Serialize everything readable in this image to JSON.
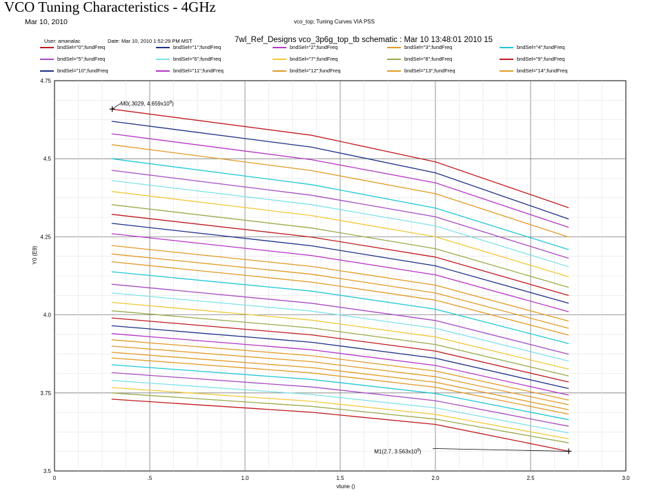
{
  "header": {
    "title": "VCO Tuning Characteristics - 4GHz",
    "date": "Mar 10, 2010",
    "subtitle": "vco_top; Tuning Curves VIA PSS",
    "user": "User: amanalac",
    "datetime": "Date: Mar 10, 2010   1:52:29 PM MST",
    "design": "7wl_Ref_Designs vco_3p6g_top_tb schematic : Mar 10 13:48:01 2010 15"
  },
  "chart_data": {
    "type": "line",
    "xlabel": "vtune ()",
    "ylabel": "Y0 (E9)",
    "xlim": [
      0,
      3.0
    ],
    "ylim": [
      3.5,
      4.75
    ],
    "xticks": [
      "0",
      ".5",
      "1.0",
      "1.5",
      "2.0",
      "2.5",
      "3.0"
    ],
    "yticks": [
      "3.5",
      "3.75",
      "4.0",
      "4.25",
      "4.5",
      "4.75"
    ],
    "x": [
      0.3,
      1.35,
      2.0,
      2.7
    ],
    "grid": true,
    "legend_position": "top",
    "series": [
      {
        "name": "bndSel=\"0\";fundFreq",
        "color": "#c0191f",
        "values": [
          4.659,
          4.575,
          4.49,
          4.343
        ]
      },
      {
        "name": "bndSel=\"1\";fundFreq",
        "color": "#1c2f86",
        "values": [
          4.62,
          4.537,
          4.455,
          4.307
        ]
      },
      {
        "name": "bndSel=\"2\";fundFreq",
        "color": "#b534c4",
        "values": [
          4.58,
          4.497,
          4.423,
          4.28
        ]
      },
      {
        "name": "bndSel=\"3\";fundFreq",
        "color": "#e09a26",
        "values": [
          4.545,
          4.462,
          4.388,
          4.249
        ]
      },
      {
        "name": "bndSel=\"4\";fundFreq",
        "color": "#1fc7d6",
        "values": [
          4.5,
          4.417,
          4.342,
          4.209
        ]
      },
      {
        "name": "bndSel=\"5\";fundFreq",
        "color": "#a74bc0",
        "values": [
          4.463,
          4.383,
          4.314,
          4.181
        ]
      },
      {
        "name": "bndSel=\"6\";fundFreq",
        "color": "#7fe2ea",
        "values": [
          4.43,
          4.353,
          4.285,
          4.154
        ]
      },
      {
        "name": "bndSel=\"7\";fundFreq",
        "color": "#f2c838",
        "values": [
          4.395,
          4.318,
          4.25,
          4.122
        ]
      },
      {
        "name": "bndSel=\"8\";fundFreq",
        "color": "#9aaa4a",
        "values": [
          4.353,
          4.278,
          4.212,
          4.088
        ]
      },
      {
        "name": "bndSel=\"9\";fundFreq",
        "color": "#c0191f",
        "values": [
          4.322,
          4.249,
          4.185,
          4.062
        ]
      },
      {
        "name": "bndSel=\"10\";fundFreq",
        "color": "#1c2f86",
        "values": [
          4.293,
          4.221,
          4.157,
          4.037
        ]
      },
      {
        "name": "bndSel=\"11\";fundFreq",
        "color": "#b534c4",
        "values": [
          4.26,
          4.19,
          4.128,
          4.01
        ]
      },
      {
        "name": "bndSel=\"12\";fundFreq",
        "color": "#e09a26",
        "values": [
          4.222,
          4.155,
          4.095,
          3.98
        ]
      },
      {
        "name": "bndSel=\"13\";fundFreq",
        "color": "#e09a26",
        "values": [
          4.195,
          4.13,
          4.07,
          3.957
        ]
      },
      {
        "name": "bndSel=\"14\";fundFreq",
        "color": "#e09a26",
        "values": [
          4.17,
          4.105,
          4.047,
          3.935
        ]
      },
      {
        "name": "",
        "color": "#1fc7d6",
        "values": [
          4.138,
          4.076,
          4.018,
          3.908
        ]
      },
      {
        "name": "",
        "color": "#a74bc0",
        "values": [
          4.098,
          4.037,
          3.982,
          3.874
        ]
      },
      {
        "name": "",
        "color": "#7fe2ea",
        "values": [
          4.07,
          4.012,
          3.957,
          3.852
        ]
      },
      {
        "name": "",
        "color": "#f2c838",
        "values": [
          4.04,
          3.983,
          3.929,
          3.826
        ]
      },
      {
        "name": "",
        "color": "#9aaa4a",
        "values": [
          4.013,
          3.958,
          3.905,
          3.804
        ]
      },
      {
        "name": "",
        "color": "#c0191f",
        "values": [
          3.99,
          3.936,
          3.884,
          3.785
        ]
      },
      {
        "name": "",
        "color": "#1c2f86",
        "values": [
          3.965,
          3.912,
          3.861,
          3.764
        ]
      },
      {
        "name": "",
        "color": "#b534c4",
        "values": [
          3.94,
          3.888,
          3.838,
          3.743
        ]
      },
      {
        "name": "",
        "color": "#e09a26",
        "values": [
          3.92,
          3.869,
          3.82,
          3.727
        ]
      },
      {
        "name": "",
        "color": "#e09a26",
        "values": [
          3.9,
          3.85,
          3.802,
          3.712
        ]
      },
      {
        "name": "",
        "color": "#e09a26",
        "values": [
          3.88,
          3.831,
          3.784,
          3.696
        ]
      },
      {
        "name": "",
        "color": "#e09a26",
        "values": [
          3.862,
          3.814,
          3.768,
          3.682
        ]
      },
      {
        "name": "",
        "color": "#1fc7d6",
        "values": [
          3.84,
          3.793,
          3.748,
          3.664
        ]
      },
      {
        "name": "",
        "color": "#a74bc0",
        "values": [
          3.815,
          3.769,
          3.725,
          3.643
        ]
      },
      {
        "name": "",
        "color": "#7fe2ea",
        "values": [
          3.79,
          3.745,
          3.702,
          3.622
        ]
      },
      {
        "name": "",
        "color": "#f2c838",
        "values": [
          3.767,
          3.723,
          3.681,
          3.603
        ]
      },
      {
        "name": "",
        "color": "#9aaa4a",
        "values": [
          3.75,
          3.707,
          3.666,
          3.59
        ]
      },
      {
        "name": "",
        "color": "#c0191f",
        "values": [
          3.73,
          3.688,
          3.649,
          3.563
        ]
      }
    ],
    "markers": [
      {
        "label": "M0(.3029, 4.659x10",
        "sup": "9",
        "close": ")",
        "x": 0.3029,
        "y": 4.659
      },
      {
        "label": "M1(2.7, 3.563x10",
        "sup": "9",
        "close": ")",
        "x": 2.7,
        "y": 3.563
      }
    ]
  }
}
